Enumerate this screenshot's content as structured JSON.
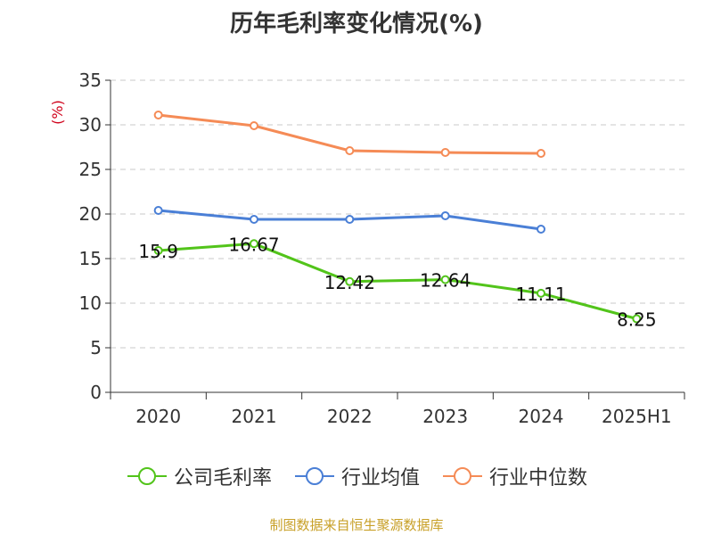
{
  "colors": {
    "company": "#52c41a",
    "industry_avg": "#4a7fd6",
    "industry_median": "#f58b56",
    "ylabel": "#d0021b",
    "source": "#c8a028",
    "axis": "#333333",
    "grid": "#c8c8c8"
  },
  "chart_data": {
    "type": "line",
    "title": "历年毛利率变化情况(%)",
    "xlabel": "",
    "ylabel": "(%)",
    "categories": [
      "2020",
      "2021",
      "2022",
      "2023",
      "2024",
      "2025H1"
    ],
    "ylim": [
      0,
      35
    ],
    "yticks": [
      0,
      5,
      10,
      15,
      20,
      25,
      30,
      35
    ],
    "grid": "horizontal dashed",
    "legend_position": "bottom",
    "series": [
      {
        "name": "公司毛利率",
        "values": [
          15.9,
          16.67,
          12.42,
          12.64,
          11.11,
          8.25
        ],
        "labels": [
          "15.9",
          "16.67",
          "12.42",
          "12.64",
          "11.11",
          "8.25"
        ]
      },
      {
        "name": "行业均值",
        "values": [
          20.4,
          19.4,
          19.4,
          19.8,
          18.3,
          null
        ]
      },
      {
        "name": "行业中位数",
        "values": [
          31.1,
          29.9,
          27.1,
          26.9,
          26.8,
          null
        ]
      }
    ]
  },
  "legend": {
    "items": [
      "公司毛利率",
      "行业均值",
      "行业中位数"
    ]
  },
  "footer": {
    "source": "制图数据来自恒生聚源数据库"
  }
}
